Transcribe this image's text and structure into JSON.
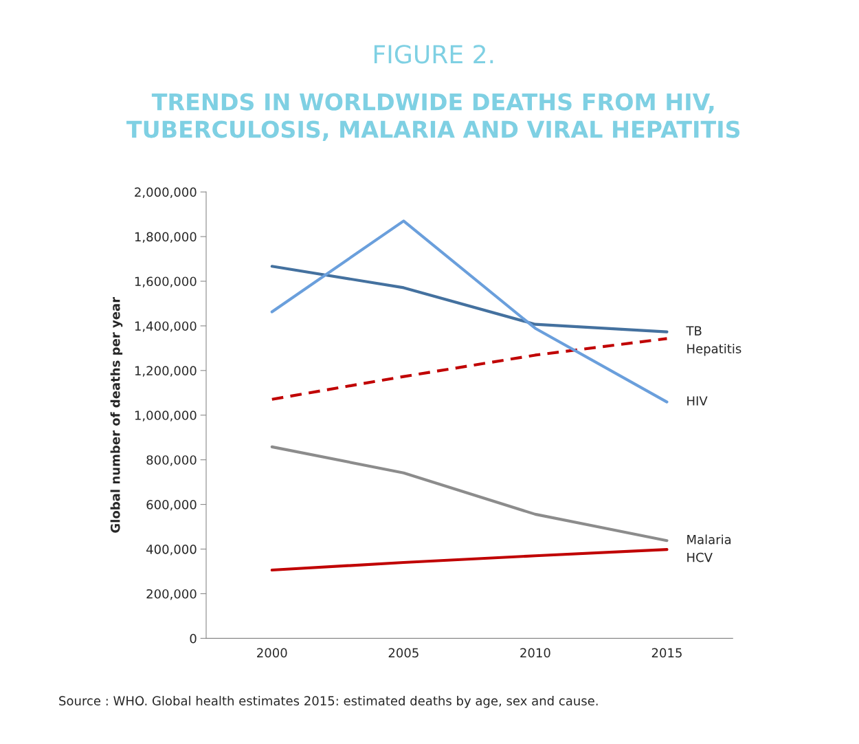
{
  "chart_data": {
    "type": "line",
    "title": "FIGURE 2.",
    "subtitle": "TRENDS IN WORLDWIDE DEATHS FROM HIV,\nTUBERCULOSIS, MALARIA AND VIRAL HEPATITIS",
    "ylabel": "Global number of deaths per year",
    "categories": [
      "2000",
      "2005",
      "2010",
      "2015"
    ],
    "series": [
      {
        "name": "TB",
        "color": "#44719f",
        "values": [
          1667000,
          1571000,
          1407000,
          1373000
        ],
        "line_style": "solid"
      },
      {
        "name": "Hepatitis",
        "color": "#c00000",
        "values": [
          1071000,
          1173000,
          1269000,
          1343000
        ],
        "line_style": "dashed"
      },
      {
        "name": "HIV",
        "color": "#6a9fdc",
        "values": [
          1463000,
          1870000,
          1389000,
          1059000
        ],
        "line_style": "solid"
      },
      {
        "name": "Malaria",
        "color": "#8c8c8c",
        "values": [
          858000,
          741000,
          556000,
          438000
        ],
        "line_style": "solid"
      },
      {
        "name": "HCV",
        "color": "#c00000",
        "values": [
          306000,
          340000,
          370000,
          398000
        ],
        "line_style": "solid"
      }
    ],
    "ylim": [
      0,
      2000000
    ],
    "yticks": [
      {
        "value": 0,
        "label": "0"
      },
      {
        "value": 200000,
        "label": "200,000"
      },
      {
        "value": 400000,
        "label": "400,000"
      },
      {
        "value": 600000,
        "label": "600,000"
      },
      {
        "value": 800000,
        "label": "800,000"
      },
      {
        "value": 1000000,
        "label": "1,000,000"
      },
      {
        "value": 1200000,
        "label": "1,200,000"
      },
      {
        "value": 1400000,
        "label": "1,400,000"
      },
      {
        "value": 1600000,
        "label": "1,600,000"
      },
      {
        "value": 1800000,
        "label": "1,800,000"
      },
      {
        "value": 2000000,
        "label": "2,000,000"
      }
    ],
    "grid": false,
    "legend": false,
    "marker": "none",
    "annotations": [
      "Source : WHO. Global health estimates 2015: estimated deaths by age, sex and cause."
    ]
  }
}
